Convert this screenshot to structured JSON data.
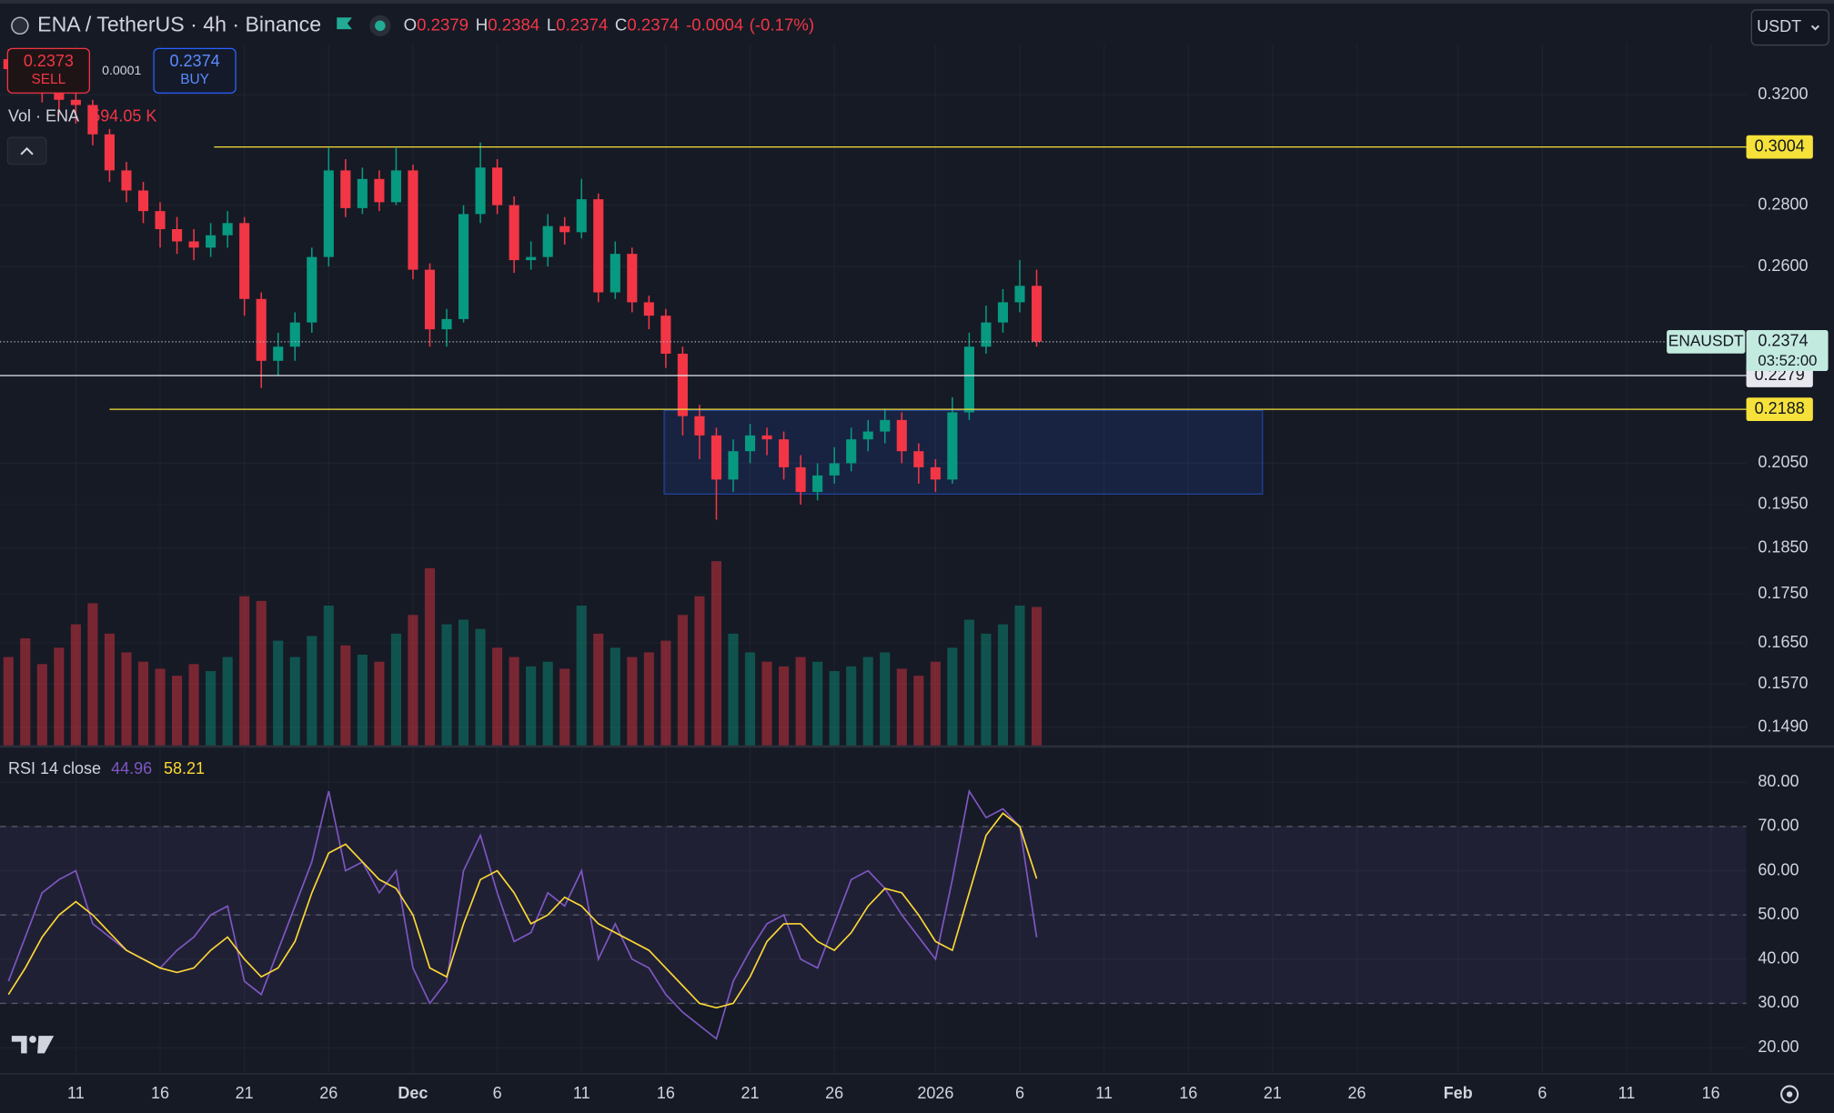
{
  "header": {
    "symbol": "ENA / TetherUS · 4h · Binance",
    "ohlc": [
      {
        "key": "O",
        "value": 0.2379
      },
      {
        "key": "H",
        "value": 0.2384
      },
      {
        "key": "L",
        "value": 0.2374
      },
      {
        "key": "C",
        "value": 0.2374
      }
    ],
    "change": -0.0004,
    "change_pct": "(-0.17%)",
    "currency": "USDT"
  },
  "trade": {
    "sell": {
      "price": 0.2373,
      "label": "SELL"
    },
    "spread": 0.0001,
    "buy": {
      "price": 0.2374,
      "label": "BUY"
    }
  },
  "chart_data": [
    {
      "type": "candlestick",
      "log_scale": true,
      "up_color": "#089981",
      "down_color": "#f23645",
      "x": [
        -4,
        -3,
        -2,
        -1,
        0,
        1,
        2,
        3,
        4,
        5,
        6,
        7,
        8,
        9,
        10,
        11,
        12,
        13,
        14,
        15,
        16,
        17,
        18,
        19,
        20,
        21,
        22,
        23,
        24,
        25,
        26,
        27,
        28,
        29,
        30,
        31,
        32,
        33,
        34,
        35,
        36,
        37,
        38,
        39,
        40,
        41,
        42,
        43,
        44,
        45,
        46,
        47,
        48,
        49,
        50,
        51,
        52,
        53,
        54,
        55,
        56,
        57
      ],
      "open": [
        0.334,
        0.33,
        0.325,
        0.322,
        0.318,
        0.316,
        0.305,
        0.292,
        0.285,
        0.278,
        0.272,
        0.268,
        0.266,
        0.27,
        0.274,
        0.25,
        0.232,
        0.236,
        0.243,
        0.263,
        0.292,
        0.279,
        0.289,
        0.281,
        0.292,
        0.259,
        0.241,
        0.244,
        0.277,
        0.293,
        0.28,
        0.262,
        0.263,
        0.273,
        0.271,
        0.282,
        0.252,
        0.264,
        0.249,
        0.245,
        0.234,
        0.217,
        0.212,
        0.201,
        0.208,
        0.212,
        0.211,
        0.204,
        0.198,
        0.202,
        0.205,
        0.211,
        0.213,
        0.216,
        0.208,
        0.204,
        0.201,
        0.218,
        0.236,
        0.243,
        0.249,
        0.254
      ],
      "high": [
        0.338,
        0.334,
        0.329,
        0.326,
        0.322,
        0.318,
        0.307,
        0.295,
        0.288,
        0.281,
        0.276,
        0.272,
        0.274,
        0.278,
        0.276,
        0.252,
        0.24,
        0.246,
        0.266,
        0.3,
        0.296,
        0.293,
        0.292,
        0.3,
        0.294,
        0.261,
        0.247,
        0.28,
        0.302,
        0.296,
        0.283,
        0.268,
        0.277,
        0.276,
        0.289,
        0.284,
        0.268,
        0.266,
        0.251,
        0.247,
        0.236,
        0.22,
        0.214,
        0.211,
        0.215,
        0.214,
        0.213,
        0.207,
        0.205,
        0.209,
        0.214,
        0.216,
        0.219,
        0.218,
        0.21,
        0.206,
        0.222,
        0.24,
        0.248,
        0.253,
        0.262,
        0.259
      ],
      "low": [
        0.326,
        0.321,
        0.317,
        0.312,
        0.309,
        0.301,
        0.288,
        0.281,
        0.274,
        0.266,
        0.264,
        0.262,
        0.263,
        0.266,
        0.245,
        0.2245,
        0.228,
        0.232,
        0.24,
        0.26,
        0.276,
        0.277,
        0.278,
        0.28,
        0.256,
        0.236,
        0.236,
        0.243,
        0.274,
        0.277,
        0.258,
        0.259,
        0.26,
        0.267,
        0.269,
        0.249,
        0.25,
        0.246,
        0.241,
        0.23,
        0.212,
        0.206,
        0.1915,
        0.198,
        0.205,
        0.207,
        0.201,
        0.195,
        0.196,
        0.2,
        0.203,
        0.208,
        0.21,
        0.205,
        0.2,
        0.198,
        0.2,
        0.216,
        0.234,
        0.24,
        0.246,
        0.236
      ],
      "close": [
        0.33,
        0.325,
        0.322,
        0.318,
        0.316,
        0.305,
        0.292,
        0.285,
        0.278,
        0.272,
        0.268,
        0.266,
        0.27,
        0.274,
        0.25,
        0.232,
        0.236,
        0.243,
        0.263,
        0.292,
        0.279,
        0.289,
        0.281,
        0.292,
        0.259,
        0.241,
        0.244,
        0.277,
        0.293,
        0.28,
        0.262,
        0.263,
        0.273,
        0.271,
        0.282,
        0.252,
        0.264,
        0.249,
        0.245,
        0.234,
        0.217,
        0.212,
        0.201,
        0.208,
        0.212,
        0.211,
        0.204,
        0.198,
        0.202,
        0.205,
        0.211,
        0.213,
        0.216,
        0.208,
        0.204,
        0.201,
        0.218,
        0.236,
        0.243,
        0.249,
        0.254,
        0.2374
      ],
      "xlim": [
        -4.5,
        99.1
      ],
      "xticks": [
        {
          "value": 0,
          "label": "11"
        },
        {
          "value": 5,
          "label": "16"
        },
        {
          "value": 10,
          "label": "21"
        },
        {
          "value": 15,
          "label": "26"
        },
        {
          "value": 20,
          "label": "Dec"
        },
        {
          "value": 25,
          "label": "6"
        },
        {
          "value": 30,
          "label": "11"
        },
        {
          "value": 35,
          "label": "16"
        },
        {
          "value": 40,
          "label": "21"
        },
        {
          "value": 45,
          "label": "26"
        },
        {
          "value": 51,
          "label": "2026"
        },
        {
          "value": 56,
          "label": "6"
        },
        {
          "value": 61,
          "label": "11"
        },
        {
          "value": 66,
          "label": "16"
        },
        {
          "value": 71,
          "label": "21"
        },
        {
          "value": 76,
          "label": "26"
        },
        {
          "value": 82,
          "label": "Feb"
        },
        {
          "value": 87,
          "label": "6"
        },
        {
          "value": 92,
          "label": "11"
        },
        {
          "value": 97,
          "label": "16"
        }
      ],
      "ylim": [
        0.1457,
        0.34
      ],
      "yticks": [
        {
          "value": 0.32,
          "label": "0.3200"
        },
        {
          "value": 0.28,
          "label": "0.2800"
        },
        {
          "value": 0.26,
          "label": "0.2600"
        },
        {
          "value": 0.205,
          "label": "0.2050"
        },
        {
          "value": 0.195,
          "label": "0.1950"
        },
        {
          "value": 0.185,
          "label": "0.1850"
        },
        {
          "value": 0.175,
          "label": "0.1750"
        },
        {
          "value": 0.165,
          "label": "0.1650"
        },
        {
          "value": 0.157,
          "label": "0.1570"
        },
        {
          "value": 0.149,
          "label": "0.1490"
        }
      ],
      "grid": true,
      "levels": [
        {
          "value": 0.3004,
          "from": 8.2,
          "color": "#f5e13a"
        },
        {
          "value": 0.2279,
          "from": -4.5,
          "color": "#e6e8ee"
        },
        {
          "value": 0.2188,
          "from": 2,
          "color": "#f5e13a"
        }
      ],
      "zone": {
        "x": [
          34.9,
          70.4
        ],
        "y": [
          0.1975,
          0.2185
        ],
        "color": "#2962ff"
      },
      "last_price_tag": {
        "symbol": "ENAUSDT",
        "countdown": "03:52:00",
        "color": "#c3eadf"
      }
    },
    {
      "type": "bar",
      "name": "Vol · ENA",
      "values": [
        380,
        460,
        350,
        420,
        520,
        610,
        480,
        400,
        360,
        330,
        300,
        350,
        320,
        380,
        640,
        620,
        450,
        380,
        470,
        600,
        430,
        390,
        360,
        480,
        560,
        760,
        520,
        540,
        500,
        420,
        380,
        340,
        360,
        330,
        600,
        480,
        420,
        380,
        400,
        450,
        560,
        640,
        790,
        480,
        400,
        360,
        340,
        380,
        360,
        320,
        340,
        380,
        400,
        330,
        300,
        360,
        420,
        540,
        480,
        520,
        600,
        594.05
      ],
      "last_label": "594.05 K",
      "ylim": [
        0,
        3000
      ]
    },
    {
      "type": "line",
      "title": "RSI 14 close",
      "series": [
        {
          "color": "#7e57c2",
          "values": [
            35,
            45,
            55,
            58,
            60,
            48,
            45,
            42,
            40,
            38,
            42,
            45,
            50,
            52,
            35,
            32,
            42,
            52,
            62,
            78,
            60,
            62,
            55,
            60,
            38,
            30,
            35,
            60,
            68,
            55,
            44,
            46,
            55,
            52,
            60,
            40,
            48,
            40,
            38,
            32,
            28,
            25,
            22,
            35,
            42,
            48,
            50,
            40,
            38,
            48,
            58,
            60,
            56,
            50,
            45,
            40,
            58,
            78,
            72,
            74,
            70,
            44.96
          ]
        },
        {
          "color": "#fdd835",
          "values": [
            32,
            38,
            45,
            50,
            53,
            50,
            46,
            42,
            40,
            38,
            37,
            38,
            42,
            45,
            40,
            36,
            38,
            44,
            55,
            64,
            66,
            62,
            58,
            56,
            50,
            38,
            36,
            48,
            58,
            60,
            55,
            48,
            50,
            54,
            52,
            48,
            46,
            44,
            42,
            38,
            34,
            30,
            29,
            30,
            36,
            44,
            48,
            48,
            44,
            42,
            46,
            52,
            56,
            55,
            50,
            44,
            42,
            55,
            68,
            73,
            70,
            58.21
          ]
        }
      ],
      "ylim": [
        14.2,
        87.7
      ],
      "yticks": [
        {
          "value": 80,
          "label": "80.00"
        },
        {
          "value": 70,
          "label": "70.00"
        },
        {
          "value": 60,
          "label": "60.00"
        },
        {
          "value": 50,
          "label": "50.00"
        },
        {
          "value": 40,
          "label": "40.00"
        },
        {
          "value": 30,
          "label": "30.00"
        },
        {
          "value": 20,
          "label": "20.00"
        }
      ],
      "bands": [
        30,
        70
      ],
      "midline": 50
    }
  ]
}
